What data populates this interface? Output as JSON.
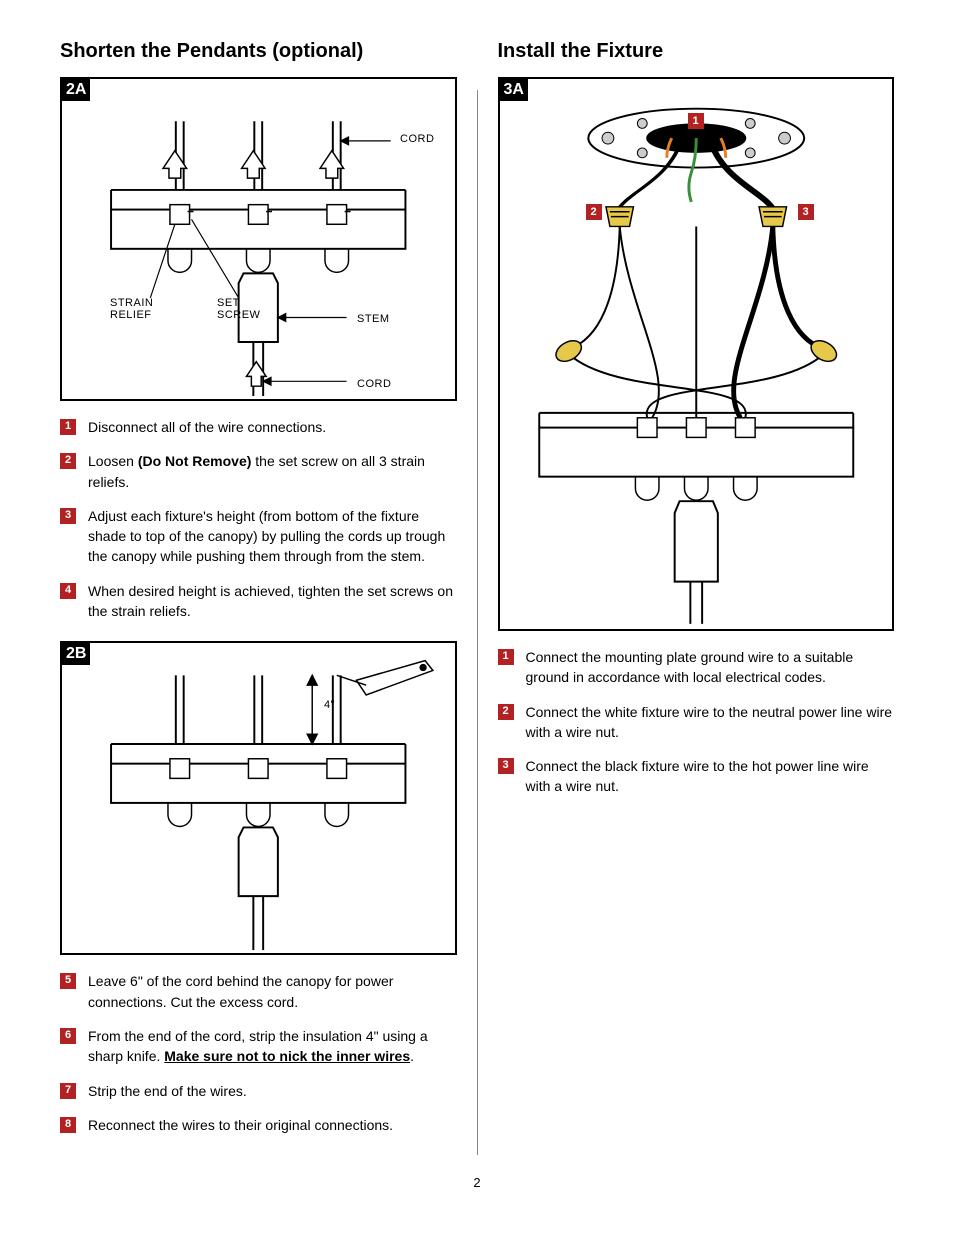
{
  "page_number": "2",
  "left": {
    "heading": "Shorten the Pendants (optional)",
    "fig2a": {
      "label": "2A",
      "annotations": {
        "cord_top": "CORD",
        "cord_bottom": "CORD",
        "strain_relief": "STRAIN\nRELIEF",
        "set_screw": "SET\nSCREW",
        "stem": "STEM"
      }
    },
    "steps_a": [
      {
        "n": "1",
        "html": "Disconnect all of the wire connections."
      },
      {
        "n": "2",
        "html": "Loosen <b>(Do Not Remove)</b> the set screw on all 3 strain reliefs."
      },
      {
        "n": "3",
        "html": "Adjust each fixture's height (from bottom of the fixture shade to top of the canopy) by pulling the cords up trough the canopy while pushing them through from the stem."
      },
      {
        "n": "4",
        "html": "When desired height is achieved, tighten the set screws on the strain reliefs."
      }
    ],
    "fig2b": {
      "label": "2B",
      "dim": "4\""
    },
    "steps_b": [
      {
        "n": "5",
        "html": "Leave 6\" of the cord behind the canopy for power connections. Cut the excess cord."
      },
      {
        "n": "6",
        "html": "From the end of the cord, strip the insulation 4\" using a sharp knife. <u>Make sure not to nick the inner wires</u>."
      },
      {
        "n": "7",
        "html": "Strip the end of the wires."
      },
      {
        "n": "8",
        "html": "Reconnect the wires to their original connections."
      }
    ]
  },
  "right": {
    "heading": "Install the Fixture",
    "fig3a": {
      "label": "3A",
      "callouts": {
        "c1": "1",
        "c2": "2",
        "c3": "3"
      }
    },
    "steps": [
      {
        "n": "1",
        "html": "Connect the mounting plate ground wire to a suitable ground in accordance with local electrical codes."
      },
      {
        "n": "2",
        "html": "Connect the white fixture wire to the neutral power line wire with a wire nut."
      },
      {
        "n": "3",
        "html": "Connect the black fixture wire to the hot power line wire with a wire nut."
      }
    ]
  },
  "colors": {
    "step_num_bg": "#b22222",
    "wire_nut": "#e6c94a",
    "ground_wire": "#3a8f3a",
    "hot_wire_accent": "#e67e22"
  }
}
